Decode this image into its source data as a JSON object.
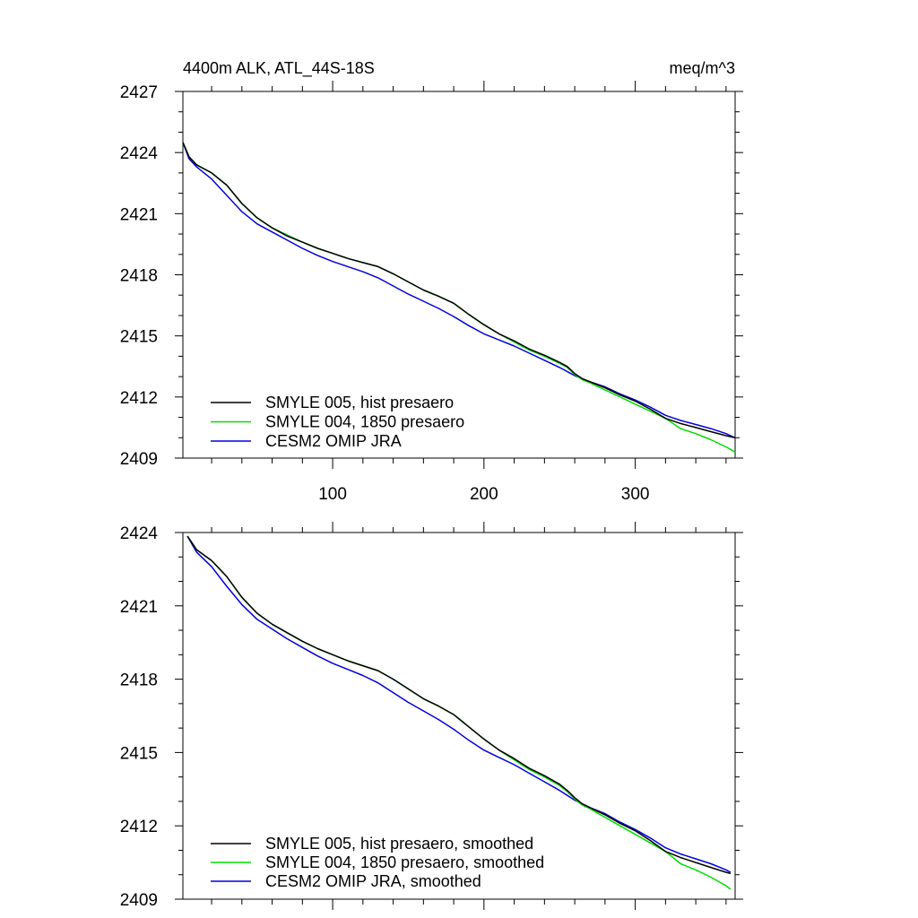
{
  "chart_data": [
    {
      "type": "line",
      "title_left": "4400m ALK, ATL_44S-18S",
      "title_right": "meq/m^3",
      "xlim": [
        1,
        366
      ],
      "ylim": [
        2409,
        2427
      ],
      "yticks": [
        2409,
        2412,
        2415,
        2418,
        2421,
        2424,
        2427
      ],
      "xticks": [
        100,
        200,
        300
      ],
      "show_x_labels": true,
      "grid": false,
      "legend_position": "bottom-left",
      "series": [
        {
          "name": "SMYLE 005, hist presaero",
          "color": "#000000",
          "x": [
            1,
            5,
            10,
            20,
            30,
            40,
            50,
            60,
            70,
            80,
            90,
            100,
            110,
            120,
            130,
            140,
            150,
            160,
            170,
            180,
            190,
            200,
            210,
            220,
            230,
            240,
            250,
            255,
            260,
            265,
            270,
            280,
            290,
            300,
            310,
            320,
            330,
            340,
            350,
            360,
            366
          ],
          "y": [
            2424.5,
            2423.8,
            2423.4,
            2423.0,
            2422.4,
            2421.5,
            2420.8,
            2420.3,
            2419.9,
            2419.6,
            2419.3,
            2419.05,
            2418.8,
            2418.6,
            2418.4,
            2418.05,
            2417.65,
            2417.25,
            2416.95,
            2416.6,
            2416.05,
            2415.55,
            2415.1,
            2414.75,
            2414.35,
            2414.05,
            2413.7,
            2413.5,
            2413.15,
            2412.9,
            2412.75,
            2412.45,
            2412.1,
            2411.8,
            2411.4,
            2410.95,
            2410.7,
            2410.5,
            2410.3,
            2410.1,
            2410.0
          ]
        },
        {
          "name": "SMYLE 004, 1850 presaero",
          "color": "#00dd00",
          "x": [
            1,
            5,
            10,
            20,
            30,
            40,
            50,
            60,
            70,
            80,
            90,
            100,
            110,
            120,
            130,
            140,
            150,
            160,
            170,
            180,
            190,
            200,
            210,
            220,
            230,
            240,
            250,
            255,
            260,
            265,
            270,
            280,
            290,
            300,
            310,
            320,
            330,
            340,
            350,
            360,
            366
          ],
          "y": [
            2424.5,
            2423.8,
            2423.4,
            2423.0,
            2422.4,
            2421.5,
            2420.8,
            2420.3,
            2419.95,
            2419.6,
            2419.3,
            2419.05,
            2418.8,
            2418.6,
            2418.4,
            2418.05,
            2417.65,
            2417.25,
            2416.95,
            2416.6,
            2416.05,
            2415.55,
            2415.1,
            2414.7,
            2414.3,
            2414.0,
            2413.65,
            2413.45,
            2413.1,
            2412.85,
            2412.7,
            2412.35,
            2412.0,
            2411.65,
            2411.3,
            2410.95,
            2410.45,
            2410.2,
            2409.9,
            2409.55,
            2409.3
          ]
        },
        {
          "name": "CESM2 OMIP JRA",
          "color": "#0000dd",
          "x": [
            1,
            5,
            10,
            20,
            30,
            40,
            50,
            60,
            70,
            80,
            90,
            100,
            110,
            120,
            130,
            140,
            150,
            160,
            170,
            180,
            190,
            200,
            210,
            220,
            230,
            240,
            250,
            260,
            270,
            280,
            290,
            300,
            310,
            320,
            330,
            340,
            350,
            360,
            366
          ],
          "y": [
            2424.5,
            2423.7,
            2423.3,
            2422.7,
            2421.9,
            2421.1,
            2420.5,
            2420.1,
            2419.7,
            2419.3,
            2418.95,
            2418.65,
            2418.4,
            2418.15,
            2417.85,
            2417.45,
            2417.05,
            2416.7,
            2416.35,
            2415.95,
            2415.5,
            2415.1,
            2414.8,
            2414.5,
            2414.15,
            2413.8,
            2413.45,
            2413.05,
            2412.75,
            2412.5,
            2412.15,
            2411.85,
            2411.5,
            2411.1,
            2410.85,
            2410.65,
            2410.45,
            2410.2,
            2410.0
          ]
        }
      ]
    },
    {
      "type": "line",
      "xlim": [
        1,
        366
      ],
      "ylim": [
        2409,
        2424
      ],
      "yticks": [
        2409,
        2412,
        2415,
        2418,
        2421,
        2424
      ],
      "xticks": [
        100,
        200,
        300
      ],
      "show_x_labels": false,
      "grid": false,
      "legend_position": "bottom-left",
      "series": [
        {
          "name": "SMYLE 005, hist presaero, smoothed",
          "color": "#000000",
          "x": [
            4,
            10,
            20,
            30,
            40,
            50,
            60,
            70,
            80,
            90,
            100,
            110,
            120,
            130,
            140,
            150,
            160,
            170,
            180,
            190,
            200,
            210,
            220,
            230,
            240,
            250,
            255,
            260,
            265,
            270,
            280,
            290,
            300,
            310,
            320,
            330,
            340,
            350,
            360,
            363
          ],
          "y": [
            2423.85,
            2423.3,
            2422.85,
            2422.2,
            2421.35,
            2420.7,
            2420.25,
            2419.9,
            2419.55,
            2419.25,
            2419.0,
            2418.75,
            2418.55,
            2418.35,
            2418.0,
            2417.6,
            2417.2,
            2416.9,
            2416.55,
            2416.05,
            2415.55,
            2415.1,
            2414.75,
            2414.35,
            2414.05,
            2413.7,
            2413.45,
            2413.15,
            2412.9,
            2412.75,
            2412.45,
            2412.1,
            2411.8,
            2411.4,
            2410.95,
            2410.7,
            2410.5,
            2410.3,
            2410.1,
            2410.05
          ]
        },
        {
          "name": "SMYLE 004, 1850 presaero, smoothed",
          "color": "#00dd00",
          "x": [
            4,
            10,
            20,
            30,
            40,
            50,
            60,
            70,
            80,
            90,
            100,
            110,
            120,
            130,
            140,
            150,
            160,
            170,
            180,
            190,
            200,
            210,
            220,
            230,
            240,
            250,
            255,
            260,
            265,
            270,
            280,
            290,
            300,
            310,
            320,
            330,
            340,
            350,
            360,
            363
          ],
          "y": [
            2423.85,
            2423.3,
            2422.85,
            2422.2,
            2421.35,
            2420.7,
            2420.25,
            2419.9,
            2419.55,
            2419.25,
            2419.0,
            2418.75,
            2418.55,
            2418.35,
            2418.0,
            2417.6,
            2417.2,
            2416.9,
            2416.55,
            2416.05,
            2415.55,
            2415.1,
            2414.7,
            2414.3,
            2414.0,
            2413.65,
            2413.4,
            2413.1,
            2412.85,
            2412.7,
            2412.35,
            2412.0,
            2411.65,
            2411.3,
            2410.95,
            2410.45,
            2410.2,
            2409.9,
            2409.55,
            2409.4
          ]
        },
        {
          "name": "CESM2 OMIP JRA, smoothed",
          "color": "#0000dd",
          "x": [
            4,
            10,
            20,
            30,
            40,
            50,
            60,
            70,
            80,
            90,
            100,
            110,
            120,
            130,
            140,
            150,
            160,
            170,
            180,
            190,
            200,
            210,
            220,
            230,
            240,
            250,
            260,
            270,
            280,
            290,
            300,
            310,
            320,
            330,
            340,
            350,
            360,
            363
          ],
          "y": [
            2423.85,
            2423.2,
            2422.6,
            2421.8,
            2421.05,
            2420.45,
            2420.05,
            2419.65,
            2419.3,
            2418.95,
            2418.65,
            2418.4,
            2418.15,
            2417.85,
            2417.45,
            2417.05,
            2416.7,
            2416.35,
            2415.95,
            2415.5,
            2415.1,
            2414.8,
            2414.5,
            2414.15,
            2413.8,
            2413.45,
            2413.05,
            2412.75,
            2412.5,
            2412.15,
            2411.85,
            2411.5,
            2411.1,
            2410.85,
            2410.65,
            2410.45,
            2410.2,
            2410.1
          ]
        }
      ]
    }
  ]
}
